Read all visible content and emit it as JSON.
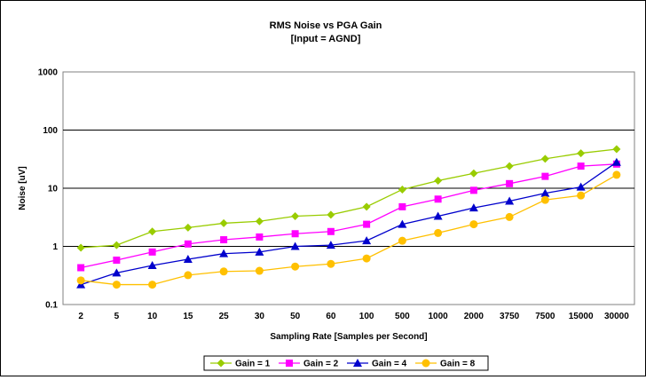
{
  "chart_data": {
    "type": "line",
    "title": "RMS Noise vs PGA Gain",
    "subtitle": "[Input = AGND]",
    "xlabel": "Sampling Rate [Samples per Second]",
    "ylabel": "Noise [uV]",
    "yscale": "log",
    "ylim": [
      0.1,
      1000
    ],
    "y_ticks": [
      "0.1",
      "1",
      "10",
      "100",
      "1000"
    ],
    "grid": true,
    "legend_position": "bottom",
    "categories": [
      "2",
      "5",
      "10",
      "15",
      "25",
      "30",
      "50",
      "60",
      "100",
      "500",
      "1000",
      "2000",
      "3750",
      "7500",
      "15000",
      "30000"
    ],
    "series": [
      {
        "name": "Gain = 1",
        "color": "#99CC00",
        "marker": "diamond",
        "values": [
          0.95,
          1.05,
          1.8,
          2.1,
          2.5,
          2.7,
          3.3,
          3.5,
          4.8,
          9.5,
          13.5,
          18,
          24,
          32,
          40,
          47
        ]
      },
      {
        "name": "Gain = 2",
        "color": "#FF00FF",
        "marker": "square",
        "values": [
          0.43,
          0.58,
          0.8,
          1.1,
          1.3,
          1.45,
          1.65,
          1.8,
          2.4,
          4.8,
          6.5,
          9.2,
          12,
          16,
          24,
          26
        ]
      },
      {
        "name": "Gain = 4",
        "color": "#0000CC",
        "marker": "triangle",
        "values": [
          0.22,
          0.35,
          0.47,
          0.6,
          0.75,
          0.8,
          1.0,
          1.05,
          1.25,
          2.4,
          3.3,
          4.6,
          6.0,
          8.2,
          10.5,
          28
        ]
      },
      {
        "name": "Gain = 8",
        "color": "#FFC000",
        "marker": "circle",
        "values": [
          0.26,
          0.22,
          0.22,
          0.32,
          0.37,
          0.38,
          0.45,
          0.5,
          0.62,
          1.25,
          1.7,
          2.4,
          3.2,
          6.3,
          7.5,
          17
        ]
      }
    ]
  }
}
